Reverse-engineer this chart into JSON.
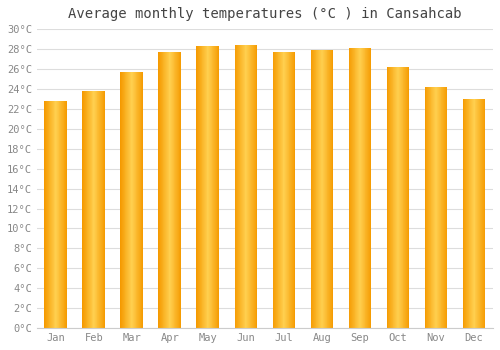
{
  "title": "Average monthly temperatures (°C ) in Cansahcab",
  "months": [
    "Jan",
    "Feb",
    "Mar",
    "Apr",
    "May",
    "Jun",
    "Jul",
    "Aug",
    "Sep",
    "Oct",
    "Nov",
    "Dec"
  ],
  "values": [
    22.8,
    23.8,
    25.7,
    27.7,
    28.3,
    28.4,
    27.7,
    27.9,
    28.1,
    26.2,
    24.2,
    23.0
  ],
  "bar_color_center": "#FFD060",
  "bar_color_edge": "#F5A000",
  "ylim": [
    0,
    30
  ],
  "ytick_step": 2,
  "background_color": "#FFFFFF",
  "plot_bg_color": "#FFFFFF",
  "grid_color": "#DDDDDD",
  "title_fontsize": 10,
  "tick_fontsize": 7.5,
  "tick_color": "#888888",
  "title_color": "#444444"
}
